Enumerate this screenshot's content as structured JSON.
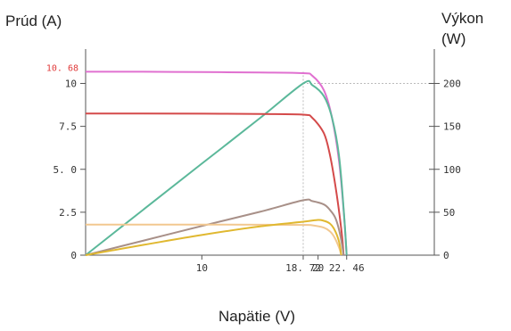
{
  "chart_data": {
    "type": "line",
    "title": "",
    "ylabel_left": "Prúd (A)",
    "ylabel_right": [
      "Výkon",
      "(W)"
    ],
    "xlabel": "Napätie (V)",
    "xlim": [
      0,
      30
    ],
    "ylim_left": [
      0,
      12
    ],
    "ylim_right": [
      0,
      240
    ],
    "x_ticks": [
      {
        "value": 10,
        "label": "10"
      },
      {
        "value": 18.72,
        "label": "18. 72"
      },
      {
        "value": 20,
        "label": "20"
      },
      {
        "value": 22.46,
        "label": "22. 46"
      }
    ],
    "y_left_ticks": [
      {
        "value": 0,
        "label": "0"
      },
      {
        "value": 2.5,
        "label": "2.5"
      },
      {
        "value": 5.0,
        "label": "5. 0"
      },
      {
        "value": 7.5,
        "label": "7.5"
      },
      {
        "value": 10,
        "label": "10"
      }
    ],
    "y_right_ticks": [
      {
        "value": 0,
        "label": "0"
      },
      {
        "value": 50,
        "label": "50"
      },
      {
        "value": 100,
        "label": "100"
      },
      {
        "value": 150,
        "label": "150"
      },
      {
        "value": 200,
        "label": "200"
      }
    ],
    "annotations": [
      {
        "text": "10. 68",
        "axis": "left",
        "value": 10.68,
        "color": "#e03a3a"
      }
    ],
    "reference_lines": [
      {
        "orientation": "vertical",
        "x": 18.72,
        "y_max_left": 10.68
      },
      {
        "orientation": "horizontal",
        "axis": "right",
        "y": 200,
        "x_from": 18.72
      }
    ],
    "series": [
      {
        "axis": "left",
        "kind": "current",
        "color": "#e070d0",
        "x": [
          0,
          5,
          10,
          15,
          18.72,
          19.5,
          20.5,
          21.2,
          21.8,
          22.2,
          22.46
        ],
        "y": [
          10.68,
          10.68,
          10.66,
          10.64,
          10.6,
          10.45,
          9.6,
          8.0,
          5.5,
          2.6,
          0
        ]
      },
      {
        "axis": "right",
        "kind": "power",
        "color": "#5bb89a",
        "x": [
          0,
          5,
          10,
          15,
          18.72,
          19.5,
          20.5,
          21.2,
          21.8,
          22.2,
          22.46
        ],
        "y": [
          0,
          53.4,
          106.6,
          159.6,
          200,
          198,
          185,
          160,
          116,
          54,
          0
        ]
      },
      {
        "axis": "left",
        "kind": "current",
        "color": "#d44a4a",
        "x": [
          0,
          5,
          10,
          15,
          18.72,
          19.5,
          20.5,
          21.0,
          21.5,
          22.0,
          22.2
        ],
        "y": [
          8.25,
          8.25,
          8.24,
          8.22,
          8.18,
          8.0,
          7.1,
          5.9,
          4.0,
          1.5,
          0
        ]
      },
      {
        "axis": "right",
        "kind": "power",
        "color": "#a89088",
        "x": [
          0,
          5,
          10,
          15,
          18.72,
          19.5,
          20.5,
          21.0,
          21.5,
          21.9,
          22.2
        ],
        "y": [
          0,
          17,
          34,
          50.5,
          64,
          63,
          59,
          53,
          43,
          24,
          0
        ]
      },
      {
        "axis": "left",
        "kind": "current",
        "color": "#f2c890",
        "x": [
          0,
          5,
          10,
          15,
          18.72,
          19.5,
          20.5,
          21.0,
          21.4,
          21.8,
          22.0
        ],
        "y": [
          1.78,
          1.78,
          1.78,
          1.77,
          1.76,
          1.74,
          1.6,
          1.4,
          1.05,
          0.45,
          0
        ]
      },
      {
        "axis": "right",
        "kind": "power",
        "color": "#e0b830",
        "x": [
          0,
          5,
          10,
          15,
          18.72,
          20,
          20.5,
          21.0,
          21.4,
          21.8,
          22.0
        ],
        "y": [
          0,
          12,
          23.5,
          33.5,
          39,
          41,
          40,
          37,
          30,
          16,
          0
        ]
      }
    ],
    "grid": false,
    "legend": "none"
  }
}
